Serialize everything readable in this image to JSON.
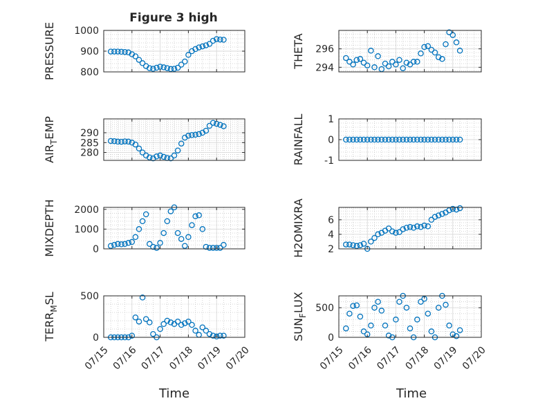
{
  "figure": {
    "title": "Figure 3 high",
    "marker_color": "#0072bd"
  },
  "chart_data": [
    {
      "type": "scatter",
      "ylabel": "PRESSURE",
      "xlabel": "",
      "grid": true,
      "xlim": [
        "07/15",
        "07/20"
      ],
      "ylim": [
        800,
        1000
      ],
      "yticks": [
        800,
        900,
        1000
      ],
      "xticks": [
        "07/15",
        "07/16",
        "07/17",
        "07/18",
        "07/19",
        "07/20"
      ],
      "x": [
        "07/15 06:00",
        "07/15 09:00",
        "07/15 12:00",
        "07/15 15:00",
        "07/15 18:00",
        "07/15 21:00",
        "07/16 00:00",
        "07/16 03:00",
        "07/16 06:00",
        "07/16 09:00",
        "07/16 12:00",
        "07/16 15:00",
        "07/16 18:00",
        "07/16 21:00",
        "07/17 00:00",
        "07/17 03:00",
        "07/17 06:00",
        "07/17 09:00",
        "07/17 12:00",
        "07/17 15:00",
        "07/17 18:00",
        "07/17 21:00",
        "07/18 00:00",
        "07/18 03:00",
        "07/18 06:00",
        "07/18 09:00",
        "07/18 12:00",
        "07/18 15:00",
        "07/18 18:00",
        "07/18 21:00",
        "07/19 00:00",
        "07/19 03:00",
        "07/19 06:00"
      ],
      "y": [
        898,
        898,
        898,
        897,
        896,
        894,
        885,
        875,
        858,
        842,
        828,
        818,
        815,
        820,
        825,
        822,
        818,
        814,
        815,
        820,
        835,
        850,
        882,
        900,
        910,
        918,
        923,
        928,
        935,
        950,
        958,
        956,
        955
      ]
    },
    {
      "type": "scatter",
      "ylabel": "THETA",
      "xlabel": "",
      "grid": true,
      "xlim": [
        "07/15",
        "07/20"
      ],
      "ylim": [
        293.5,
        298
      ],
      "yticks": [
        294,
        296
      ],
      "xticks": [
        "07/15",
        "07/16",
        "07/17",
        "07/18",
        "07/19",
        "07/20"
      ],
      "x": [
        "07/15 06:00",
        "07/15 09:00",
        "07/15 12:00",
        "07/15 15:00",
        "07/15 18:00",
        "07/15 21:00",
        "07/16 00:00",
        "07/16 03:00",
        "07/16 06:00",
        "07/16 09:00",
        "07/16 12:00",
        "07/16 15:00",
        "07/16 18:00",
        "07/16 21:00",
        "07/17 00:00",
        "07/17 03:00",
        "07/17 06:00",
        "07/17 09:00",
        "07/17 12:00",
        "07/17 15:00",
        "07/17 18:00",
        "07/17 21:00",
        "07/18 00:00",
        "07/18 03:00",
        "07/18 06:00",
        "07/18 09:00",
        "07/18 12:00",
        "07/18 15:00",
        "07/18 18:00",
        "07/18 21:00",
        "07/19 00:00",
        "07/19 03:00",
        "07/19 06:00"
      ],
      "y": [
        295.0,
        294.6,
        294.3,
        294.8,
        294.9,
        294.5,
        294.2,
        295.8,
        294.0,
        295.2,
        293.8,
        294.4,
        294.1,
        294.6,
        294.3,
        294.8,
        293.9,
        294.5,
        294.3,
        294.6,
        294.6,
        295.5,
        296.2,
        296.3,
        295.9,
        295.6,
        295.1,
        294.9,
        296.5,
        297.8,
        297.5,
        296.7,
        295.8
      ]
    },
    {
      "type": "scatter",
      "ylabel": "AIR_TEMP",
      "xlabel": "",
      "grid": true,
      "xlim": [
        "07/15",
        "07/20"
      ],
      "ylim": [
        276,
        297
      ],
      "yticks": [
        280,
        285,
        290
      ],
      "xticks": [
        "07/15",
        "07/16",
        "07/17",
        "07/18",
        "07/19",
        "07/20"
      ],
      "x": [
        "07/15 06:00",
        "07/15 09:00",
        "07/15 12:00",
        "07/15 15:00",
        "07/15 18:00",
        "07/15 21:00",
        "07/16 00:00",
        "07/16 03:00",
        "07/16 06:00",
        "07/16 09:00",
        "07/16 12:00",
        "07/16 15:00",
        "07/16 18:00",
        "07/16 21:00",
        "07/17 00:00",
        "07/17 03:00",
        "07/17 06:00",
        "07/17 09:00",
        "07/17 12:00",
        "07/17 15:00",
        "07/17 18:00",
        "07/17 21:00",
        "07/18 00:00",
        "07/18 03:00",
        "07/18 06:00",
        "07/18 09:00",
        "07/18 12:00",
        "07/18 15:00",
        "07/18 18:00",
        "07/18 21:00",
        "07/19 00:00",
        "07/19 03:00",
        "07/19 06:00"
      ],
      "y": [
        285.8,
        285.7,
        285.5,
        285.4,
        285.6,
        285.5,
        285.0,
        284.0,
        282.0,
        280.0,
        278.5,
        277.5,
        277.0,
        278.0,
        278.5,
        277.8,
        277.2,
        277.0,
        278.5,
        281.0,
        284.5,
        287.5,
        288.5,
        288.8,
        289.0,
        289.3,
        290.0,
        291.0,
        293.5,
        295.0,
        294.5,
        294.0,
        293.3
      ]
    },
    {
      "type": "scatter",
      "ylabel": "RAINFALL",
      "xlabel": "",
      "grid": true,
      "xlim": [
        "07/15",
        "07/20"
      ],
      "ylim": [
        -1,
        1
      ],
      "yticks": [
        -1,
        0,
        1
      ],
      "xticks": [
        "07/15",
        "07/16",
        "07/17",
        "07/18",
        "07/19",
        "07/20"
      ],
      "x": [
        "07/15 06:00",
        "07/15 09:00",
        "07/15 12:00",
        "07/15 15:00",
        "07/15 18:00",
        "07/15 21:00",
        "07/16 00:00",
        "07/16 03:00",
        "07/16 06:00",
        "07/16 09:00",
        "07/16 12:00",
        "07/16 15:00",
        "07/16 18:00",
        "07/16 21:00",
        "07/17 00:00",
        "07/17 03:00",
        "07/17 06:00",
        "07/17 09:00",
        "07/17 12:00",
        "07/17 15:00",
        "07/17 18:00",
        "07/17 21:00",
        "07/18 00:00",
        "07/18 03:00",
        "07/18 06:00",
        "07/18 09:00",
        "07/18 12:00",
        "07/18 15:00",
        "07/18 18:00",
        "07/18 21:00",
        "07/19 00:00",
        "07/19 03:00",
        "07/19 06:00"
      ],
      "y": [
        0,
        0,
        0,
        0,
        0,
        0,
        0,
        0,
        0,
        0,
        0,
        0,
        0,
        0,
        0,
        0,
        0,
        0,
        0,
        0,
        0,
        0,
        0,
        0,
        0,
        0,
        0,
        0,
        0,
        0,
        0,
        0,
        0
      ]
    },
    {
      "type": "scatter",
      "ylabel": "MIXDEPTH",
      "xlabel": "",
      "grid": true,
      "xlim": [
        "07/15",
        "07/20"
      ],
      "ylim": [
        0,
        2100
      ],
      "yticks": [
        0,
        1000,
        2000
      ],
      "xticks": [
        "07/15",
        "07/16",
        "07/17",
        "07/18",
        "07/19",
        "07/20"
      ],
      "x": [
        "07/15 06:00",
        "07/15 09:00",
        "07/15 12:00",
        "07/15 15:00",
        "07/15 18:00",
        "07/15 21:00",
        "07/16 00:00",
        "07/16 03:00",
        "07/16 06:00",
        "07/16 09:00",
        "07/16 12:00",
        "07/16 15:00",
        "07/16 18:00",
        "07/16 21:00",
        "07/17 00:00",
        "07/17 03:00",
        "07/17 06:00",
        "07/17 09:00",
        "07/17 12:00",
        "07/17 15:00",
        "07/17 18:00",
        "07/17 21:00",
        "07/18 00:00",
        "07/18 03:00",
        "07/18 06:00",
        "07/18 09:00",
        "07/18 12:00",
        "07/18 15:00",
        "07/18 18:00",
        "07/18 21:00",
        "07/19 00:00",
        "07/19 03:00",
        "07/19 06:00"
      ],
      "y": [
        150,
        200,
        250,
        230,
        250,
        300,
        350,
        600,
        1000,
        1400,
        1750,
        250,
        100,
        50,
        300,
        800,
        1400,
        1900,
        2100,
        800,
        500,
        150,
        600,
        1200,
        1650,
        1700,
        1000,
        100,
        50,
        50,
        50,
        50,
        200
      ]
    },
    {
      "type": "scatter",
      "ylabel": "H2OMIXRA",
      "xlabel": "",
      "grid": true,
      "xlim": [
        "07/15",
        "07/20"
      ],
      "ylim": [
        2,
        7.7
      ],
      "yticks": [
        2,
        4,
        6
      ],
      "xticks": [
        "07/15",
        "07/16",
        "07/17",
        "07/18",
        "07/19",
        "07/20"
      ],
      "x": [
        "07/15 06:00",
        "07/15 09:00",
        "07/15 12:00",
        "07/15 15:00",
        "07/15 18:00",
        "07/15 21:00",
        "07/16 00:00",
        "07/16 03:00",
        "07/16 06:00",
        "07/16 09:00",
        "07/16 12:00",
        "07/16 15:00",
        "07/16 18:00",
        "07/16 21:00",
        "07/17 00:00",
        "07/17 03:00",
        "07/17 06:00",
        "07/17 09:00",
        "07/17 12:00",
        "07/17 15:00",
        "07/17 18:00",
        "07/17 21:00",
        "07/18 00:00",
        "07/18 03:00",
        "07/18 06:00",
        "07/18 09:00",
        "07/18 12:00",
        "07/18 15:00",
        "07/18 18:00",
        "07/18 21:00",
        "07/19 00:00",
        "07/19 03:00",
        "07/19 06:00"
      ],
      "y": [
        2.6,
        2.6,
        2.5,
        2.4,
        2.5,
        2.7,
        2.0,
        3.0,
        3.5,
        4.0,
        4.2,
        4.5,
        4.8,
        4.4,
        4.2,
        4.3,
        4.7,
        4.9,
        5.0,
        4.9,
        5.1,
        5.0,
        5.2,
        5.1,
        6.0,
        6.4,
        6.6,
        6.8,
        7.0,
        7.3,
        7.5,
        7.4,
        7.6
      ]
    },
    {
      "type": "scatter",
      "ylabel": "TERR_MSL",
      "xlabel": "Time",
      "grid": true,
      "xlim": [
        "07/15",
        "07/20"
      ],
      "ylim": [
        0,
        500
      ],
      "yticks": [
        0,
        500
      ],
      "xticks": [
        "07/15",
        "07/16",
        "07/17",
        "07/18",
        "07/19",
        "07/20"
      ],
      "x": [
        "07/15 06:00",
        "07/15 09:00",
        "07/15 12:00",
        "07/15 15:00",
        "07/15 18:00",
        "07/15 21:00",
        "07/16 00:00",
        "07/16 03:00",
        "07/16 06:00",
        "07/16 09:00",
        "07/16 12:00",
        "07/16 15:00",
        "07/16 18:00",
        "07/16 21:00",
        "07/17 00:00",
        "07/17 03:00",
        "07/17 06:00",
        "07/17 09:00",
        "07/17 12:00",
        "07/17 15:00",
        "07/17 18:00",
        "07/17 21:00",
        "07/18 00:00",
        "07/18 03:00",
        "07/18 06:00",
        "07/18 09:00",
        "07/18 12:00",
        "07/18 15:00",
        "07/18 18:00",
        "07/18 21:00",
        "07/19 00:00",
        "07/19 03:00",
        "07/19 06:00"
      ],
      "y": [
        0,
        0,
        0,
        0,
        0,
        0,
        20,
        240,
        190,
        480,
        220,
        180,
        40,
        0,
        100,
        160,
        200,
        180,
        160,
        190,
        150,
        170,
        190,
        150,
        80,
        30,
        120,
        80,
        40,
        20,
        10,
        20,
        20
      ]
    },
    {
      "type": "scatter",
      "ylabel": "SUN_FLUX",
      "xlabel": "Time",
      "grid": true,
      "xlim": [
        "07/15",
        "07/20"
      ],
      "ylim": [
        0,
        700
      ],
      "yticks": [
        0,
        500
      ],
      "xticks": [
        "07/15",
        "07/16",
        "07/17",
        "07/18",
        "07/19",
        "07/20"
      ],
      "x": [
        "07/15 06:00",
        "07/15 09:00",
        "07/15 12:00",
        "07/15 15:00",
        "07/15 18:00",
        "07/15 21:00",
        "07/16 00:00",
        "07/16 03:00",
        "07/16 06:00",
        "07/16 09:00",
        "07/16 12:00",
        "07/16 15:00",
        "07/16 18:00",
        "07/16 21:00",
        "07/17 00:00",
        "07/17 03:00",
        "07/17 06:00",
        "07/17 09:00",
        "07/17 12:00",
        "07/17 15:00",
        "07/17 18:00",
        "07/17 21:00",
        "07/18 00:00",
        "07/18 03:00",
        "07/18 06:00",
        "07/18 09:00",
        "07/18 12:00",
        "07/18 15:00",
        "07/18 18:00",
        "07/18 21:00",
        "07/19 00:00",
        "07/19 03:00",
        "07/19 06:00"
      ],
      "y": [
        150,
        400,
        530,
        540,
        350,
        100,
        50,
        200,
        500,
        600,
        450,
        200,
        30,
        0,
        300,
        600,
        700,
        500,
        150,
        0,
        300,
        600,
        650,
        400,
        100,
        0,
        500,
        700,
        550,
        200,
        50,
        20,
        120
      ]
    }
  ]
}
